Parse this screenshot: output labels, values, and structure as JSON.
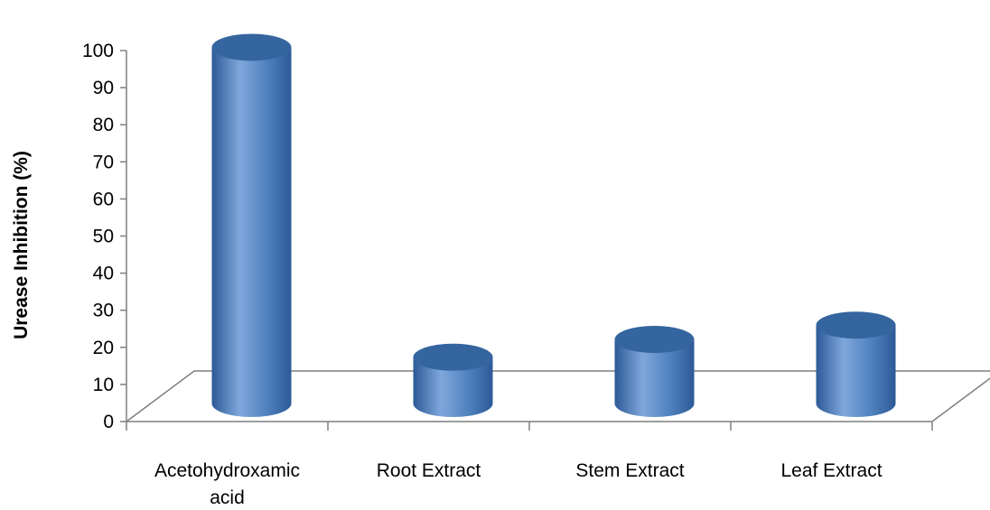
{
  "chart_data": {
    "type": "bar",
    "style": "3d-cylinder",
    "title": "",
    "xlabel": "",
    "ylabel": "Urease Inhibition (%)",
    "ylim": [
      0,
      100
    ],
    "yticks": [
      "0",
      "10",
      "20",
      "30",
      "40",
      "50",
      "60",
      "70",
      "80",
      "90",
      "100"
    ],
    "categories": [
      [
        "Acetohydroxamic",
        "acid"
      ],
      [
        "Root Extract"
      ],
      [
        "Stem Extract"
      ],
      [
        "Leaf Extract"
      ]
    ],
    "values": [
      100,
      13,
      18,
      22
    ],
    "grid": false,
    "legend": "none",
    "colors": {
      "bar_light": "#7fa7dc",
      "bar_mid": "#4f81bd",
      "bar_dark": "#2c5a96",
      "bar_top": "#35659f",
      "axis": "#7f7f7f"
    }
  }
}
